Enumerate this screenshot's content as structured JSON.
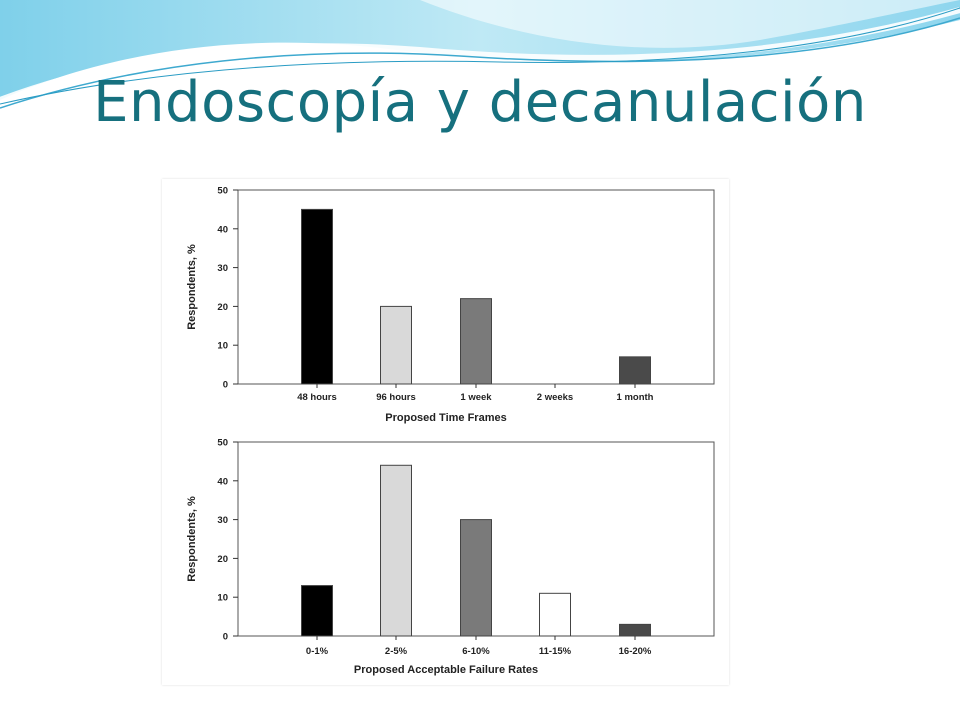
{
  "slide": {
    "title": "Endoscopía y decanulación"
  },
  "colors": {
    "title": "#16707e",
    "wave_light": "#a8e2f2",
    "wave_mid": "#5fc3e0",
    "wave_dark": "#2a9cc4"
  },
  "chart_data": [
    {
      "type": "bar",
      "title": "",
      "categories": [
        "48 hours",
        "96 hours",
        "1 week",
        "2 weeks",
        "1 month"
      ],
      "values": [
        45,
        20,
        22,
        0,
        7
      ],
      "colors": [
        "#000000",
        "#d9d9d9",
        "#7a7a7a",
        "#ffffff",
        "#4a4a4a"
      ],
      "xlabel": "Proposed Time Frames",
      "ylabel": "Respondents, %",
      "ylim": [
        0,
        50
      ],
      "yticks": [
        0,
        10,
        20,
        30,
        40,
        50
      ],
      "grid": false,
      "legend": "none"
    },
    {
      "type": "bar",
      "title": "",
      "categories": [
        "0-1%",
        "2-5%",
        "6-10%",
        "11-15%",
        "16-20%"
      ],
      "values": [
        13,
        44,
        30,
        11,
        3
      ],
      "colors": [
        "#000000",
        "#d9d9d9",
        "#7a7a7a",
        "#ffffff",
        "#4a4a4a"
      ],
      "xlabel": "Proposed Acceptable Failure Rates",
      "ylabel": "Respondents, %",
      "ylim": [
        0,
        50
      ],
      "yticks": [
        0,
        10,
        20,
        30,
        40,
        50
      ],
      "grid": false,
      "legend": "none"
    }
  ]
}
